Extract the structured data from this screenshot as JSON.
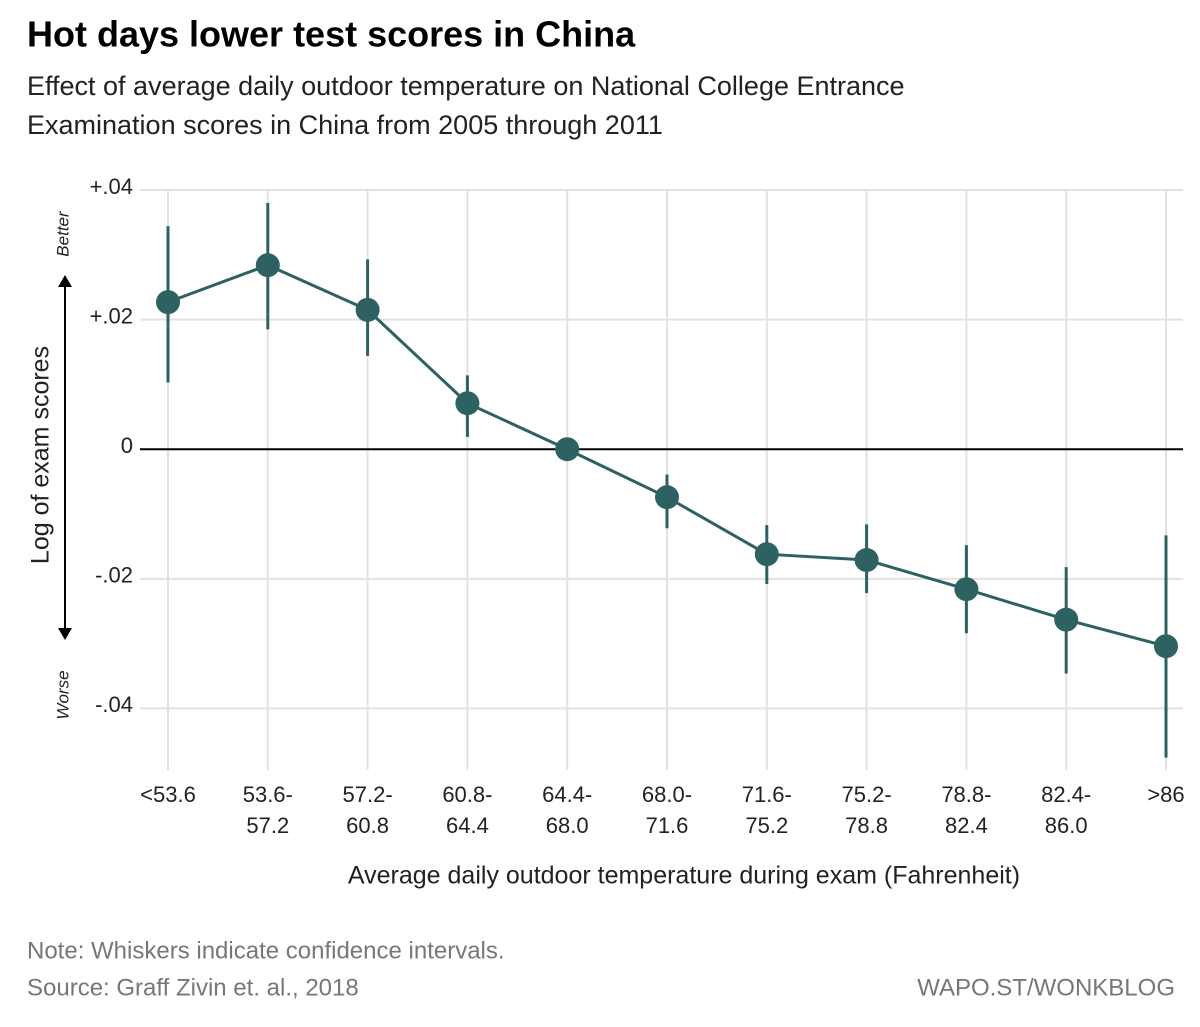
{
  "chart_data": {
    "type": "errorline",
    "title": "Hot days lower test scores in China",
    "subtitle": [
      "Effect of average daily outdoor temperature on National College Entrance",
      "Examination scores in China from 2005 through 2011"
    ],
    "categories": [
      [
        "<53.6"
      ],
      [
        "53.6-",
        "57.2"
      ],
      [
        "57.2-",
        "60.8"
      ],
      [
        "60.8-",
        "64.4"
      ],
      [
        "64.4-",
        "68.0"
      ],
      [
        "68.0-",
        "71.6"
      ],
      [
        "71.6-",
        "75.2"
      ],
      [
        "75.2-",
        "78.8"
      ],
      [
        "78.8-",
        "82.4"
      ],
      [
        "82.4-",
        "86.0"
      ],
      [
        ">86"
      ]
    ],
    "series": [
      {
        "color": "#2e6262",
        "values": [
          0.0227,
          0.0284,
          0.0215,
          0.0071,
          0,
          -0.0074,
          -0.0162,
          -0.0171,
          -0.0216,
          -0.0263,
          -0.0304
        ],
        "ci_high": [
          0.0344,
          0.038,
          0.0293,
          0.0114,
          null,
          -0.0039,
          -0.0117,
          -0.0116,
          -0.0148,
          -0.0182,
          -0.0133
        ],
        "ci_low": [
          0.0103,
          0.0185,
          0.0144,
          0.0019,
          null,
          -0.0122,
          -0.0208,
          -0.0222,
          -0.0284,
          -0.0346,
          -0.0476
        ]
      }
    ],
    "ylim": [
      -0.0495,
      0.04
    ],
    "yticks": [
      {
        "value": 0.04,
        "label": "+.04"
      },
      {
        "value": 0.02,
        "label": "+.02"
      },
      0,
      {
        "value": -0.02,
        "label": "-.02"
      },
      {
        "value": -0.04,
        "label": "-.04"
      }
    ],
    "grid": true,
    "y_label": "Log of exam scores",
    "y_annotations": {
      "top": "Better",
      "bottom": "Worse"
    },
    "x_label": "Average daily outdoor temperature during exam (Fahrenheit)",
    "note": "Note: Whiskers indicate confidence intervals.",
    "source": "Source: Graff Zivin et. al., 2018",
    "credit": "WAPO.ST/WONKBLOG"
  }
}
